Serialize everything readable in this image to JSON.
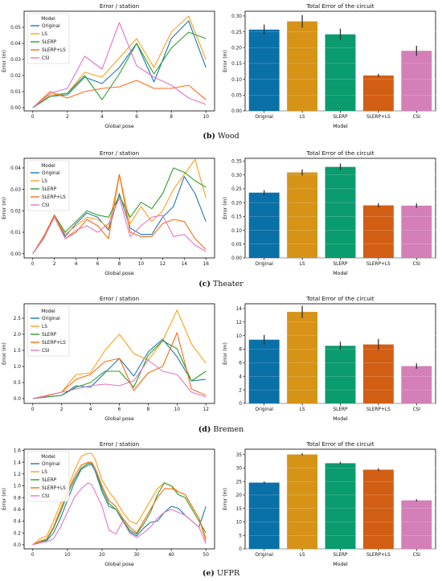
{
  "colors": {
    "Original": "#1f77b4",
    "LS": "#ff9f1c",
    "SLERP": "#2ca02c",
    "SLERP+LS": "#ff6a13",
    "CSI": "#e377c2",
    "bar_Original": "#0a70a8",
    "bar_LS": "#d69317",
    "bar_SLERP": "#0a9b6e",
    "bar_SLERP+LS": "#d25e13",
    "bar_CSI": "#d47fb8"
  },
  "panels": [
    {
      "caption_id": "(b)",
      "caption_name": "Wood"
    },
    {
      "caption_id": "(c)",
      "caption_name": "Theater"
    },
    {
      "caption_id": "(d)",
      "caption_name": "Bremen"
    },
    {
      "caption_id": "(e)",
      "caption_name": "UFPR"
    }
  ],
  "chart_data": [
    {
      "type": "line",
      "title": "Error / station",
      "xlabel": "Global pose",
      "ylabel": "Error (m)",
      "legend_title": "Model",
      "legend_position": "top-left",
      "xlim": [
        -0.5,
        10.5
      ],
      "ylim": [
        -0.002,
        0.06
      ],
      "xticks": [
        0,
        2,
        4,
        6,
        8,
        10
      ],
      "yticks": [
        0.0,
        0.01,
        0.02,
        0.03,
        0.04,
        0.05
      ],
      "ytick_labels": [
        "0.00",
        "0.01",
        "0.02",
        "0.03",
        "0.04",
        "0.05"
      ],
      "x": [
        0,
        1,
        2,
        3,
        4,
        5,
        6,
        7,
        8,
        9,
        10
      ],
      "series": [
        {
          "name": "Original",
          "values": [
            0.0,
            0.007,
            0.008,
            0.019,
            0.015,
            0.025,
            0.04,
            0.016,
            0.043,
            0.054,
            0.025
          ]
        },
        {
          "name": "LS",
          "values": [
            0.0,
            0.008,
            0.009,
            0.022,
            0.019,
            0.031,
            0.043,
            0.025,
            0.047,
            0.057,
            0.03
          ]
        },
        {
          "name": "SLERP",
          "values": [
            0.0,
            0.007,
            0.009,
            0.02,
            0.005,
            0.021,
            0.04,
            0.021,
            0.037,
            0.047,
            0.043
          ]
        },
        {
          "name": "SLERP+LS",
          "values": [
            0.0,
            0.01,
            0.006,
            0.01,
            0.012,
            0.013,
            0.017,
            0.012,
            0.012,
            0.014,
            0.005
          ]
        },
        {
          "name": "CSI",
          "values": [
            0.0,
            0.009,
            0.012,
            0.032,
            0.024,
            0.053,
            0.026,
            0.019,
            0.014,
            0.006,
            0.002
          ]
        }
      ]
    },
    {
      "type": "bar",
      "title": "Total Error of the circuit",
      "xlabel": "Model",
      "ylabel": "Error (m)",
      "ylim": [
        0,
        0.315
      ],
      "yticks": [
        0.0,
        0.05,
        0.1,
        0.15,
        0.2,
        0.25,
        0.3
      ],
      "ytick_labels": [
        "0.00",
        "0.05",
        "0.10",
        "0.15",
        "0.20",
        "0.25",
        "0.30"
      ],
      "categories": [
        "Original",
        "LS",
        "SLERP",
        "SLERP+LS",
        "CSI"
      ],
      "values": [
        0.257,
        0.283,
        0.242,
        0.112,
        0.19
      ],
      "errors": [
        0.016,
        0.02,
        0.018,
        0.005,
        0.016
      ]
    },
    {
      "type": "line",
      "title": "Error / station",
      "xlabel": "Global pose",
      "ylabel": "Error (m)",
      "legend_title": "Model",
      "legend_position": "top-left",
      "xlim": [
        -0.8,
        16.8
      ],
      "ylim": [
        -0.002,
        0.0445
      ],
      "xticks": [
        0,
        2,
        4,
        6,
        8,
        10,
        12,
        14,
        16
      ],
      "yticks": [
        0.0,
        0.01,
        0.02,
        0.03,
        0.04
      ],
      "ytick_labels": [
        "0.00",
        "0.01",
        "0.02",
        "0.03",
        "0.04"
      ],
      "x": [
        0,
        1,
        2,
        3,
        4,
        5,
        6,
        7,
        8,
        9,
        10,
        11,
        12,
        13,
        14,
        15,
        16
      ],
      "series": [
        {
          "name": "Original",
          "values": [
            0.0,
            0.007,
            0.018,
            0.008,
            0.014,
            0.019,
            0.017,
            0.011,
            0.028,
            0.012,
            0.009,
            0.009,
            0.017,
            0.022,
            0.036,
            0.028,
            0.015
          ]
        },
        {
          "name": "LS",
          "values": [
            0.0,
            0.008,
            0.018,
            0.009,
            0.013,
            0.017,
            0.016,
            0.012,
            0.037,
            0.014,
            0.022,
            0.015,
            0.02,
            0.03,
            0.037,
            0.044,
            0.026
          ]
        },
        {
          "name": "SLERP",
          "values": [
            0.0,
            0.007,
            0.018,
            0.01,
            0.015,
            0.02,
            0.018,
            0.017,
            0.027,
            0.017,
            0.024,
            0.021,
            0.028,
            0.04,
            0.038,
            0.034,
            0.031
          ]
        },
        {
          "name": "SLERP+LS",
          "values": [
            0.0,
            0.008,
            0.018,
            0.007,
            0.01,
            0.016,
            0.013,
            0.007,
            0.037,
            0.01,
            0.008,
            0.008,
            0.014,
            0.016,
            0.015,
            0.007,
            0.002
          ]
        },
        {
          "name": "CSI",
          "values": [
            0.0,
            0.007,
            0.017,
            0.007,
            0.011,
            0.013,
            0.01,
            0.014,
            0.026,
            0.008,
            0.013,
            0.017,
            0.018,
            0.008,
            0.009,
            0.004,
            0.001
          ]
        }
      ]
    },
    {
      "type": "bar",
      "title": "Total Error of the circuit",
      "xlabel": "Model",
      "ylabel": "Error (m)",
      "ylim": [
        0,
        0.36
      ],
      "yticks": [
        0.0,
        0.05,
        0.1,
        0.15,
        0.2,
        0.25,
        0.3,
        0.35
      ],
      "ytick_labels": [
        "0.00",
        "0.05",
        "0.10",
        "0.15",
        "0.20",
        "0.25",
        "0.30",
        "0.35"
      ],
      "categories": [
        "Original",
        "LS",
        "SLERP",
        "SLERP+LS",
        "CSI"
      ],
      "values": [
        0.236,
        0.309,
        0.329,
        0.19,
        0.189
      ],
      "errors": [
        0.009,
        0.011,
        0.012,
        0.008,
        0.008
      ]
    },
    {
      "type": "line",
      "title": "Error / station",
      "xlabel": "Global pose",
      "ylabel": "Error (m)",
      "legend_title": "Model",
      "legend_position": "top-left",
      "xlim": [
        -0.6,
        12.6
      ],
      "ylim": [
        -0.15,
        2.95
      ],
      "xticks": [
        0,
        2,
        4,
        6,
        8,
        10,
        12
      ],
      "yticks": [
        0.0,
        0.5,
        1.0,
        1.5,
        2.0,
        2.5
      ],
      "ytick_labels": [
        "0.0",
        "0.5",
        "1.0",
        "1.5",
        "2.0",
        "2.5"
      ],
      "x": [
        0,
        1,
        2,
        3,
        4,
        5,
        6,
        7,
        8,
        9,
        10,
        11,
        12
      ],
      "series": [
        {
          "name": "Original",
          "values": [
            0.0,
            0.05,
            0.1,
            0.4,
            0.35,
            0.8,
            1.25,
            0.7,
            1.45,
            1.85,
            1.3,
            0.55,
            0.6
          ]
        },
        {
          "name": "LS",
          "values": [
            0.0,
            0.1,
            0.2,
            0.75,
            0.8,
            1.5,
            2.0,
            1.4,
            1.2,
            1.8,
            2.75,
            1.7,
            1.1
          ]
        },
        {
          "name": "SLERP",
          "values": [
            0.0,
            0.05,
            0.1,
            0.35,
            0.5,
            0.85,
            0.85,
            0.35,
            1.35,
            1.8,
            1.55,
            0.55,
            0.85
          ]
        },
        {
          "name": "SLERP+LS",
          "values": [
            0.0,
            0.1,
            0.2,
            0.6,
            0.75,
            1.15,
            1.25,
            0.25,
            0.8,
            1.0,
            2.05,
            0.3,
            0.1
          ]
        },
        {
          "name": "CSI",
          "values": [
            0.0,
            0.08,
            0.2,
            0.3,
            0.4,
            0.45,
            0.4,
            0.55,
            1.2,
            0.85,
            0.75,
            0.2,
            0.05
          ]
        }
      ]
    },
    {
      "type": "bar",
      "title": "Total Error of the circuit",
      "xlabel": "Model",
      "ylabel": "Error (m)",
      "ylim": [
        0,
        14.7
      ],
      "yticks": [
        0,
        2,
        4,
        6,
        8,
        10,
        12,
        14
      ],
      "ytick_labels": [
        "0",
        "2",
        "4",
        "6",
        "8",
        "10",
        "12",
        "14"
      ],
      "categories": [
        "Original",
        "LS",
        "SLERP",
        "SLERP+LS",
        "CSI"
      ],
      "values": [
        9.4,
        13.5,
        8.5,
        8.7,
        5.5
      ],
      "errors": [
        0.7,
        0.9,
        0.6,
        0.8,
        0.4
      ]
    },
    {
      "type": "line",
      "title": "Error / station",
      "xlabel": "Global pose",
      "ylabel": "Error (m)",
      "legend_title": "Model",
      "legend_position": "top-left",
      "xlim": [
        -2.5,
        52.5
      ],
      "ylim": [
        -0.07,
        1.62
      ],
      "xticks": [
        0,
        10,
        20,
        30,
        40,
        50
      ],
      "yticks": [
        0.0,
        0.2,
        0.4,
        0.6,
        0.8,
        1.0,
        1.2,
        1.4,
        1.6
      ],
      "ytick_labels": [
        "0.0",
        "0.2",
        "0.4",
        "0.6",
        "0.8",
        "1.0",
        "1.2",
        "1.4",
        "1.6"
      ],
      "x": [
        0,
        2,
        4,
        6,
        8,
        10,
        12,
        14,
        16,
        17,
        18,
        20,
        22,
        24,
        26,
        28,
        30,
        32,
        34,
        36,
        38,
        40,
        42,
        44,
        46,
        48,
        50
      ],
      "series": [
        {
          "name": "Original",
          "values": [
            0.0,
            0.05,
            0.07,
            0.2,
            0.45,
            0.75,
            1.05,
            1.28,
            1.35,
            1.36,
            1.25,
            0.9,
            0.65,
            0.6,
            0.4,
            0.22,
            0.15,
            0.28,
            0.38,
            0.4,
            0.55,
            0.65,
            0.62,
            0.5,
            0.4,
            0.3,
            0.65
          ]
        },
        {
          "name": "LS",
          "values": [
            0.0,
            0.1,
            0.15,
            0.4,
            0.7,
            0.95,
            1.25,
            1.5,
            1.55,
            1.55,
            1.45,
            1.1,
            0.9,
            0.75,
            0.55,
            0.4,
            0.35,
            0.55,
            0.75,
            0.95,
            1.05,
            1.0,
            0.9,
            0.85,
            0.65,
            0.45,
            0.05
          ]
        },
        {
          "name": "SLERP",
          "values": [
            0.0,
            0.05,
            0.08,
            0.28,
            0.55,
            0.85,
            1.1,
            1.3,
            1.38,
            1.38,
            1.3,
            0.95,
            0.7,
            0.6,
            0.42,
            0.25,
            0.18,
            0.35,
            0.55,
            0.85,
            1.05,
            1.0,
            0.85,
            0.8,
            0.6,
            0.4,
            0.2
          ]
        },
        {
          "name": "SLERP+LS",
          "values": [
            0.0,
            0.06,
            0.1,
            0.3,
            0.6,
            0.9,
            1.15,
            1.35,
            1.4,
            1.4,
            1.3,
            1.0,
            0.75,
            0.65,
            0.45,
            0.3,
            0.2,
            0.4,
            0.6,
            0.8,
            0.95,
            0.95,
            0.9,
            0.85,
            0.65,
            0.45,
            0.1
          ]
        },
        {
          "name": "CSI",
          "values": [
            0.0,
            0.03,
            0.05,
            0.1,
            0.3,
            0.55,
            0.8,
            0.95,
            1.05,
            1.02,
            0.9,
            0.65,
            0.25,
            0.18,
            0.4,
            0.2,
            0.12,
            0.2,
            0.3,
            0.45,
            0.55,
            0.6,
            0.55,
            0.5,
            0.4,
            0.3,
            0.02
          ]
        }
      ]
    },
    {
      "type": "bar",
      "title": "Total Error of the circuit",
      "xlabel": "Model",
      "ylabel": "Error (m)",
      "ylim": [
        0,
        37
      ],
      "yticks": [
        0,
        5,
        10,
        15,
        20,
        25,
        30,
        35
      ],
      "ytick_labels": [
        "0",
        "5",
        "10",
        "15",
        "20",
        "25",
        "30",
        "35"
      ],
      "categories": [
        "Original",
        "LS",
        "SLERP",
        "SLERP+LS",
        "CSI"
      ],
      "values": [
        24.6,
        35.1,
        31.8,
        29.4,
        18.0
      ],
      "errors": [
        0.4,
        0.4,
        0.5,
        0.5,
        0.4
      ]
    }
  ]
}
